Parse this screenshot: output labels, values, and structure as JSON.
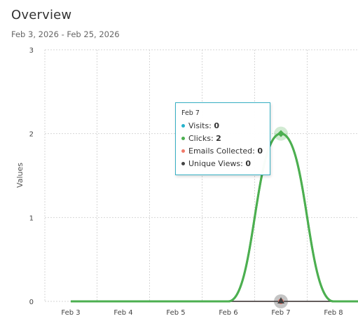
{
  "header": {
    "title": "Overview",
    "date_range": "Feb 3, 2026 - Feb 25, 2026"
  },
  "chart_data": {
    "type": "line",
    "ylabel": "Values",
    "ylim": [
      0,
      3
    ],
    "y_ticks": [
      "0",
      "1",
      "2",
      "3"
    ],
    "categories": [
      "Feb 3",
      "Feb 4",
      "Feb 5",
      "Feb 6",
      "Feb 7",
      "Feb 8"
    ],
    "grid": true,
    "series": [
      {
        "name": "Visits",
        "color": "#26b3cc",
        "values": [
          0,
          0,
          0,
          0,
          0,
          0
        ]
      },
      {
        "name": "Clicks",
        "color": "#4caf50",
        "values": [
          0,
          0,
          0,
          0,
          2,
          0
        ]
      },
      {
        "name": "Emails Collected",
        "color": "#f07a6a",
        "values": [
          0,
          0,
          0,
          0,
          0,
          0
        ]
      },
      {
        "name": "Unique Views",
        "color": "#444444",
        "values": [
          0,
          0,
          0,
          0,
          0,
          0
        ]
      }
    ]
  },
  "tooltip": {
    "date": "Feb 7",
    "rows": [
      {
        "label": "Visits: ",
        "value": "0",
        "color": "#26b3cc"
      },
      {
        "label": "Clicks: ",
        "value": "2",
        "color": "#4caf50"
      },
      {
        "label": "Emails Collected: ",
        "value": "0",
        "color": "#f07a6a"
      },
      {
        "label": "Unique Views: ",
        "value": "0",
        "color": "#444444"
      }
    ]
  }
}
